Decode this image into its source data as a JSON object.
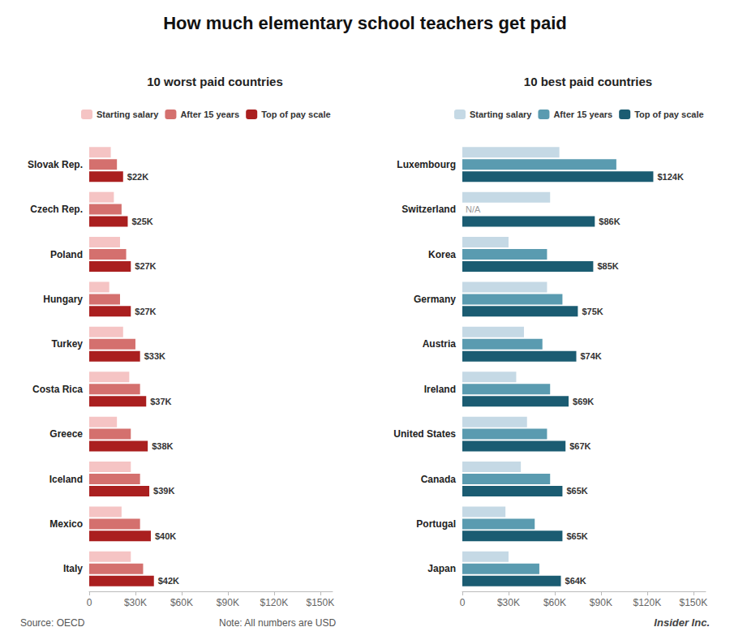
{
  "title": "How much elementary school teachers get paid",
  "annotations": [
    "Source: OECD",
    "Note: All numbers are USD",
    "Insider Inc."
  ],
  "chart_data": [
    {
      "type": "bar",
      "orientation": "horizontal",
      "title": "10 worst paid countries",
      "categories": [
        "Slovak Rep.",
        "Czech Rep.",
        "Poland",
        "Hungary",
        "Turkey",
        "Costa Rica",
        "Greece",
        "Iceland",
        "Mexico",
        "Italy"
      ],
      "series": [
        {
          "name": "Starting salary",
          "color": "#f5c4c4",
          "values": [
            14000,
            16000,
            20000,
            13000,
            22000,
            26000,
            18000,
            27000,
            21000,
            27000
          ]
        },
        {
          "name": "After 15 years",
          "color": "#d4706e",
          "values": [
            18000,
            21000,
            24000,
            20000,
            30000,
            33000,
            27000,
            33000,
            33000,
            35000
          ]
        },
        {
          "name": "Top of pay scale",
          "color": "#aa1f1f",
          "values": [
            22000,
            25000,
            27000,
            27000,
            33000,
            37000,
            38000,
            39000,
            40000,
            42000
          ],
          "data_labels": true,
          "value_labels": [
            "$22K",
            "$25K",
            "$27K",
            "$27K",
            "$33K",
            "$37K",
            "$38K",
            "$39K",
            "$40K",
            "$42K"
          ]
        }
      ],
      "xlim": [
        0,
        158000
      ],
      "xticks": [
        0,
        {
          "value": 30000,
          "label": "$30K"
        },
        {
          "value": 60000,
          "label": "$60K"
        },
        {
          "value": 90000,
          "label": "$90K"
        },
        {
          "value": 120000,
          "label": "$120K"
        },
        {
          "value": 150000,
          "label": "$150K"
        }
      ],
      "grid": false,
      "legend": "top"
    },
    {
      "type": "bar",
      "orientation": "horizontal",
      "title": "10 best paid countries",
      "categories": [
        "Luxembourg",
        "Switzerland",
        "Korea",
        "Germany",
        "Austria",
        "Ireland",
        "United States",
        "Canada",
        "Portugal",
        "Japan"
      ],
      "series": [
        {
          "name": "Starting salary",
          "color": "#c5d9e5",
          "values": [
            63000,
            57000,
            30000,
            55000,
            40000,
            35000,
            42000,
            38000,
            28000,
            30000
          ]
        },
        {
          "name": "After 15 years",
          "color": "#5a9bb0",
          "values": [
            100000,
            null,
            55000,
            65000,
            52000,
            57000,
            55000,
            57000,
            47000,
            50000
          ]
        },
        {
          "name": "Top of pay scale",
          "color": "#1b5c72",
          "values": [
            124000,
            86000,
            85000,
            75000,
            74000,
            69000,
            67000,
            65000,
            65000,
            64000
          ],
          "data_labels": true,
          "value_labels": [
            "$124K",
            "$86K",
            "$85K",
            "$75K",
            "$74K",
            "$69K",
            "$67K",
            "$65K",
            "$65K",
            "$64K"
          ]
        }
      ],
      "annotations": [
        {
          "text": "N/A",
          "category": "Switzerland",
          "series": "After 15 years"
        }
      ],
      "xlim": [
        0,
        158000
      ],
      "xticks": [
        0,
        {
          "value": 30000,
          "label": "$30K"
        },
        {
          "value": 60000,
          "label": "$60K"
        },
        {
          "value": 90000,
          "label": "$90K"
        },
        {
          "value": 120000,
          "label": "$120K"
        },
        {
          "value": 150000,
          "label": "$150K"
        }
      ],
      "grid": false,
      "legend": "top"
    }
  ]
}
